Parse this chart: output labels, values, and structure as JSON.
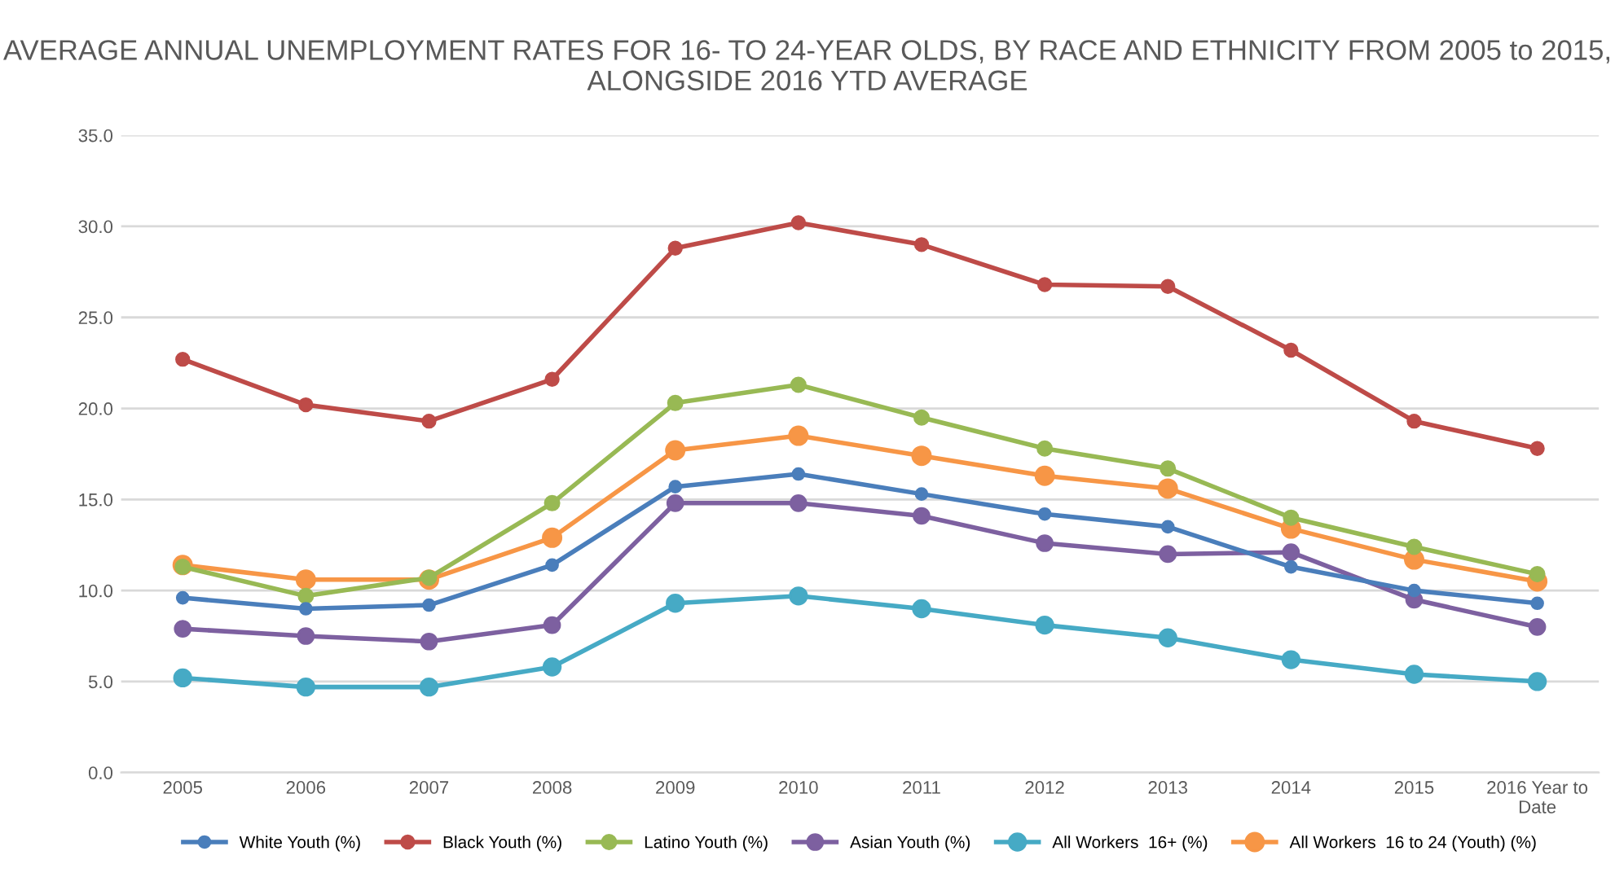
{
  "chart_data": {
    "type": "line",
    "title": "AVERAGE ANNUAL UNEMPLOYMENT RATES FOR 16- TO 24-YEAR OLDS, BY RACE AND ETHNICITY FROM 2005 to 2015, ALONGSIDE 2016 YTD AVERAGE",
    "categories": [
      "2005",
      "2006",
      "2007",
      "2008",
      "2009",
      "2010",
      "2011",
      "2012",
      "2013",
      "2014",
      "2015",
      "2016 Year to Date"
    ],
    "series": [
      {
        "name": "White Youth (%)",
        "color": "#4a7ebb",
        "values": [
          9.6,
          9.0,
          9.2,
          11.4,
          15.7,
          16.4,
          15.3,
          14.2,
          13.5,
          11.3,
          10.0,
          9.3
        ]
      },
      {
        "name": "Black Youth (%)",
        "color": "#be4b48",
        "values": [
          22.7,
          20.2,
          19.3,
          21.6,
          28.8,
          30.2,
          29.0,
          26.8,
          26.7,
          23.2,
          19.3,
          17.8
        ]
      },
      {
        "name": "Latino Youth (%)",
        "color": "#98b954",
        "values": [
          11.3,
          9.7,
          10.7,
          14.8,
          20.3,
          21.3,
          19.5,
          17.8,
          16.7,
          14.0,
          12.4,
          10.9
        ]
      },
      {
        "name": "Asian Youth (%)",
        "color": "#7d60a0",
        "values": [
          7.9,
          7.5,
          7.2,
          8.1,
          14.8,
          14.8,
          14.1,
          12.6,
          12.0,
          12.1,
          9.5,
          8.0
        ]
      },
      {
        "name": "All Workers  16+ (%)",
        "color": "#46aac5",
        "values": [
          5.2,
          4.7,
          4.7,
          5.8,
          9.3,
          9.7,
          9.0,
          8.1,
          7.4,
          6.2,
          5.4,
          5.0
        ]
      },
      {
        "name": "All Workers  16 to 24 (Youth) (%)",
        "color": "#f79646",
        "values": [
          11.4,
          10.6,
          10.6,
          12.9,
          17.7,
          18.5,
          17.4,
          16.3,
          15.6,
          13.4,
          11.7,
          10.5
        ]
      }
    ],
    "ylim": [
      0,
      35
    ],
    "yticks": [
      {
        "value": 0,
        "label": "0.0"
      },
      {
        "value": 5,
        "label": "5.0"
      },
      {
        "value": 10,
        "label": "10.0"
      },
      {
        "value": 15,
        "label": "15.0"
      },
      {
        "value": 20,
        "label": "20.0"
      },
      {
        "value": 25,
        "label": "25.0"
      },
      {
        "value": 30,
        "label": "30.0"
      },
      {
        "value": 35,
        "label": "35.0"
      }
    ],
    "grid": "y",
    "legend": "bottom",
    "marker": "circle",
    "line_style": "solid"
  }
}
